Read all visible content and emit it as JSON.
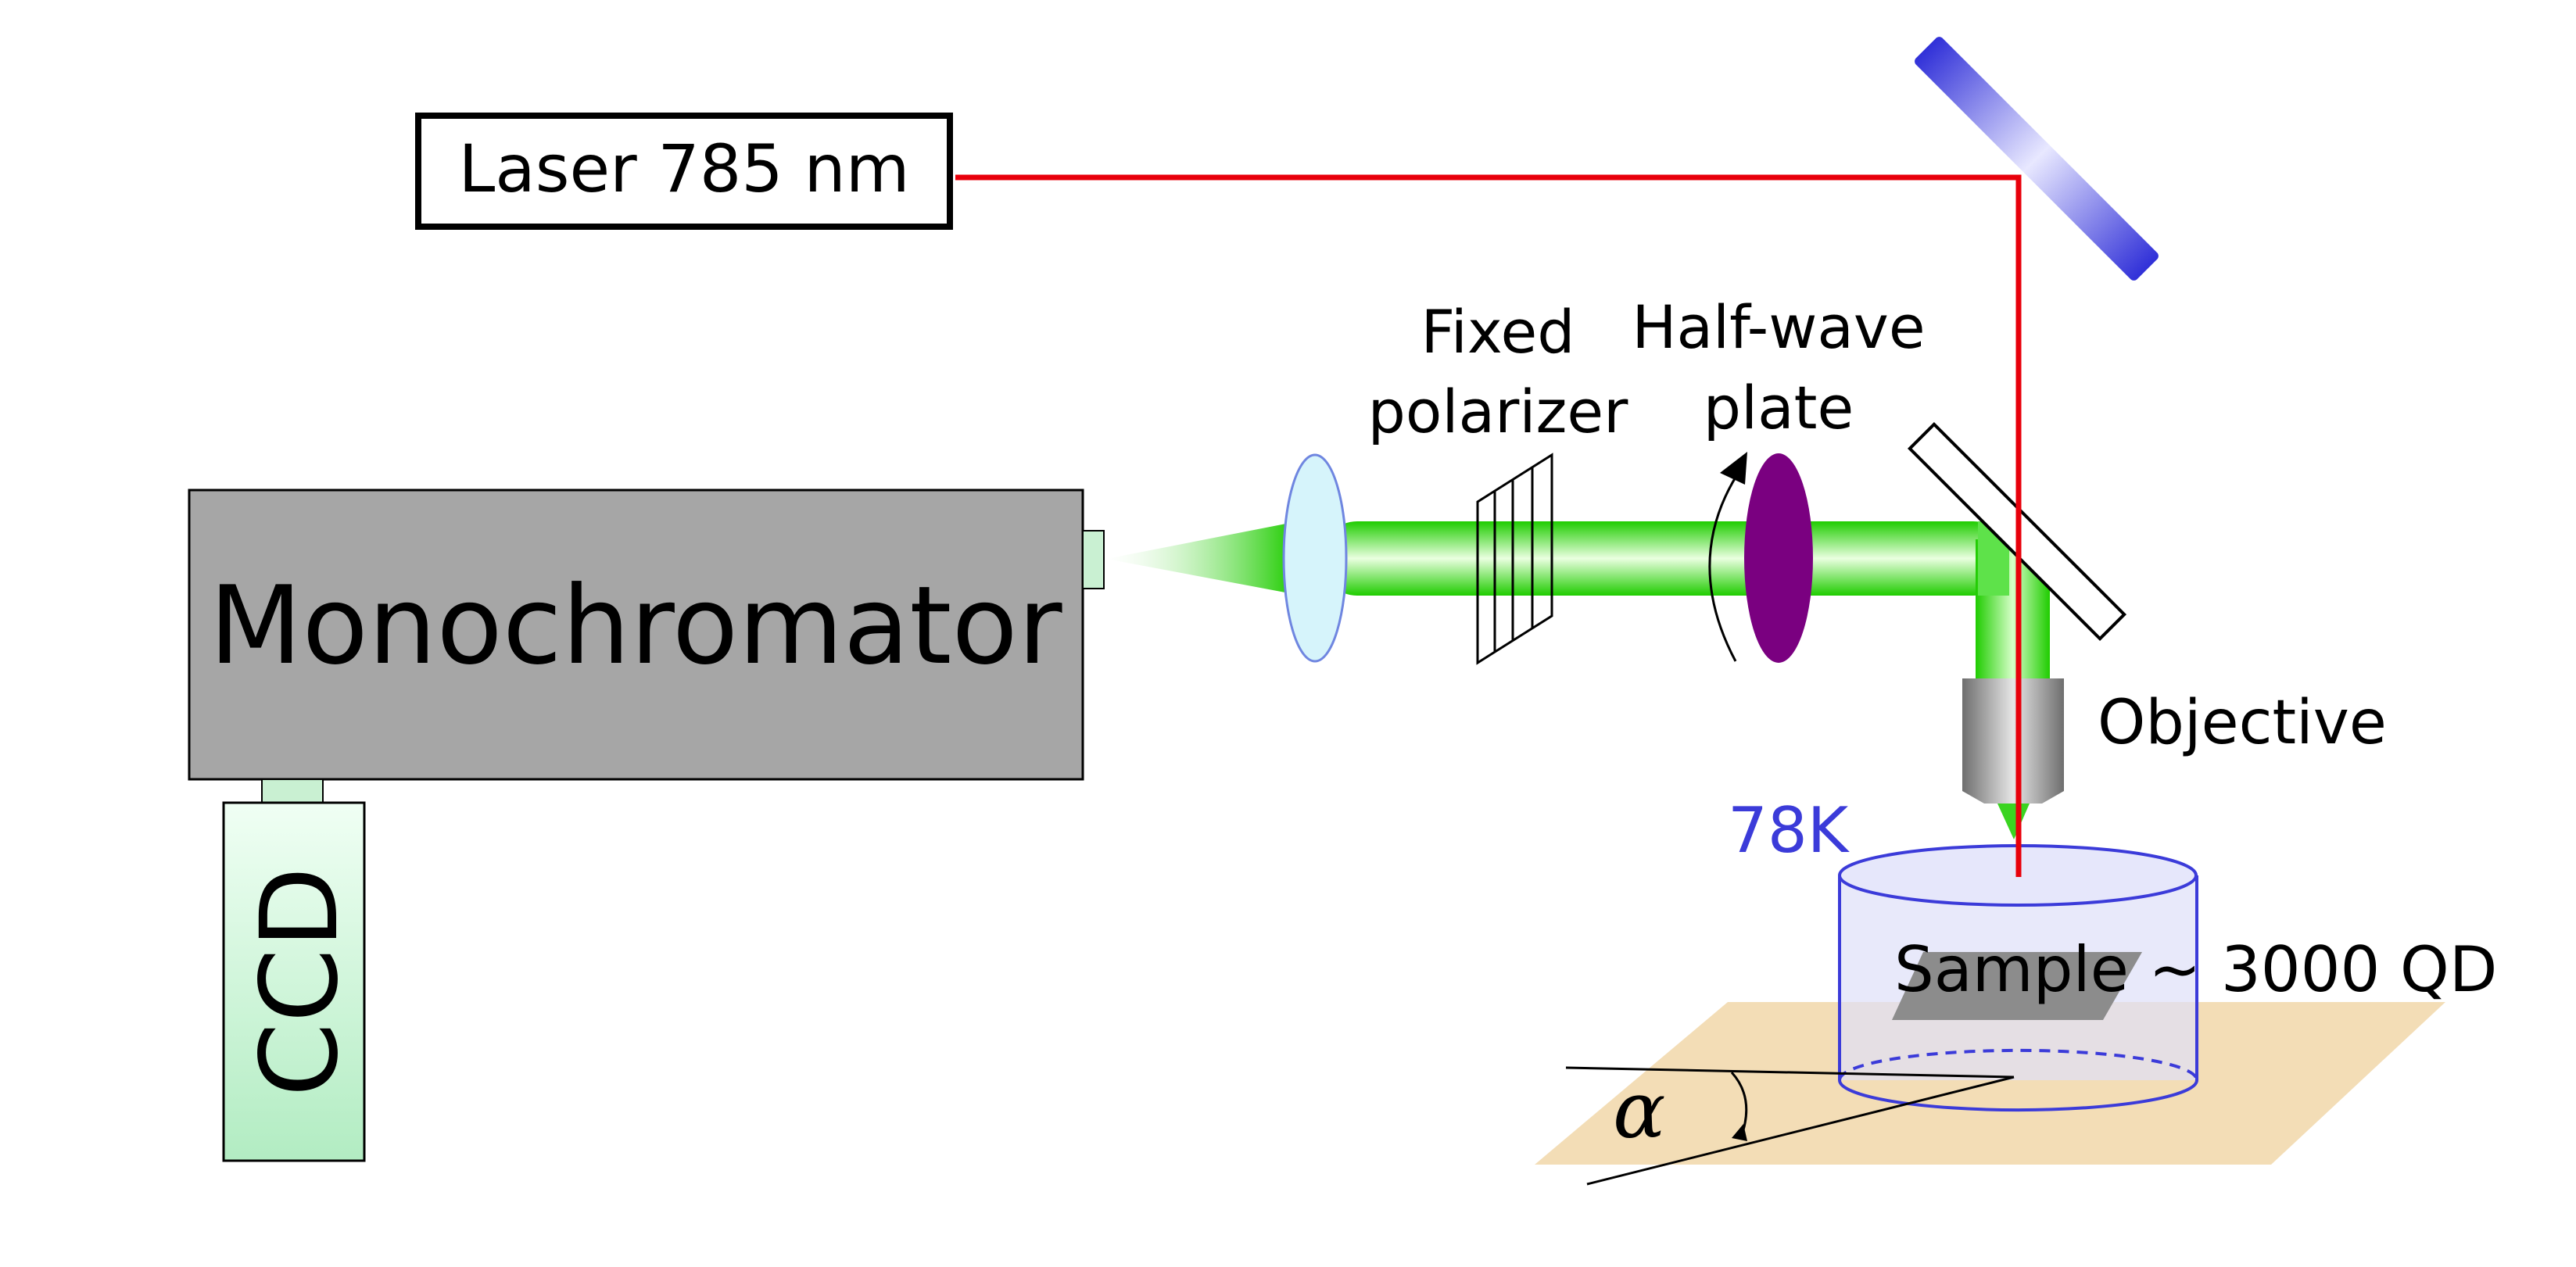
{
  "labels": {
    "laser": "Laser 785 nm",
    "monochromator": "Monochromator",
    "ccd": "CCD",
    "fixed_polarizer_line1": "Fixed",
    "fixed_polarizer_line2": "polarizer",
    "half_wave_line1": "Half-wave",
    "half_wave_line2": "plate",
    "objective": "Objective",
    "temperature": "78K",
    "sample": "Sample ~ 3000 QD",
    "angle": "α"
  },
  "colors": {
    "laser_beam": "#e8000b",
    "signal_beam": "#22cc00",
    "mirror": "#3b3bd9",
    "half_wave_plate": "#7a0080",
    "cryostat": "#3b3bd9",
    "temperature_text": "#3b3bd9",
    "monochromator_body": "#a6a6a6",
    "ccd_body": "#b9eec8",
    "stage_plate": "#f3ddb6",
    "lens": "#d6f4fb"
  }
}
